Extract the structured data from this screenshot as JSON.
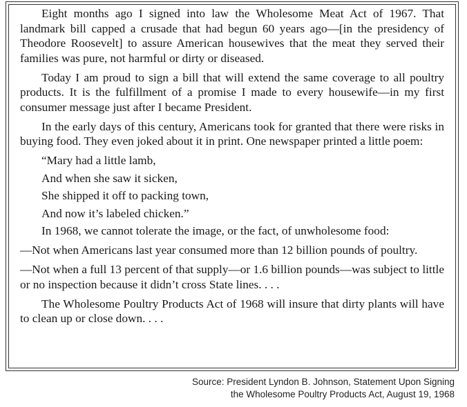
{
  "document": {
    "paragraphs": [
      "Eight months ago I signed into law the Wholesome Meat Act of 1967. That landmark bill capped a crusade that had begun 60 years ago—[in the presidency of Theodore Roosevelt] to assure American housewives that the meat they served their families was pure, not harmful or dirty or diseased.",
      "Today I am proud to sign a bill that will extend the same coverage to all poultry products. It is the fulfillment of a promise I made to every housewife—in my first consumer message just after I became President.",
      "In the early days of this century, Americans took for granted that there were risks in buying food. They even joked about it in print. One newspaper printed a little poem:"
    ],
    "poem": [
      "“Mary had a little lamb,",
      "And when she saw it sicken,",
      "She shipped it off to packing town,",
      "And now it’s labeled chicken.”"
    ],
    "paragraph_1968": "In 1968, we cannot tolerate the image, or the fact, of unwholesome food:",
    "dash_points": [
      "—Not when Americans last year consumed more than 12 billion pounds of poultry.",
      "—Not when a full 13 percent of that supply—or 1.6 billion pounds—was subject to little or no inspection because it didn’t cross State lines. . . ."
    ],
    "closing": "The Wholesome Poultry Products Act of 1968 will insure that dirty plants will have to clean up or close down. . . ."
  },
  "source": {
    "line1": "Source: President Lyndon B. Johnson, Statement Upon Signing",
    "line2": "the Wholesome Poultry Products Act, August 19, 1968"
  }
}
